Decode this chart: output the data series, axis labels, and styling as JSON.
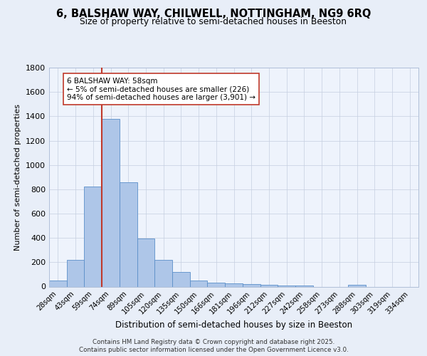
{
  "title_line1": "6, BALSHAW WAY, CHILWELL, NOTTINGHAM, NG9 6RQ",
  "title_line2": "Size of property relative to semi-detached houses in Beeston",
  "xlabel": "Distribution of semi-detached houses by size in Beeston",
  "ylabel": "Number of semi-detached properties",
  "categories": [
    "28sqm",
    "43sqm",
    "59sqm",
    "74sqm",
    "89sqm",
    "105sqm",
    "120sqm",
    "135sqm",
    "150sqm",
    "166sqm",
    "181sqm",
    "196sqm",
    "212sqm",
    "227sqm",
    "242sqm",
    "258sqm",
    "273sqm",
    "288sqm",
    "303sqm",
    "319sqm",
    "334sqm"
  ],
  "values": [
    50,
    220,
    820,
    1380,
    860,
    395,
    220,
    120,
    50,
    35,
    25,
    18,
    15,
    10,
    10,
    0,
    0,
    12,
    0,
    0,
    0
  ],
  "bar_color": "#aec6e8",
  "bar_edge_color": "#5b8fc9",
  "vline_color": "#c0392b",
  "annotation_text": "6 BALSHAW WAY: 58sqm\n← 5% of semi-detached houses are smaller (226)\n94% of semi-detached houses are larger (3,901) →",
  "annotation_box_color": "#ffffff",
  "annotation_box_edge": "#c0392b",
  "ylim": [
    0,
    1800
  ],
  "yticks": [
    0,
    200,
    400,
    600,
    800,
    1000,
    1200,
    1400,
    1600,
    1800
  ],
  "footer_line1": "Contains HM Land Registry data © Crown copyright and database right 2025.",
  "footer_line2": "Contains public sector information licensed under the Open Government Licence v3.0.",
  "bg_color": "#e8eef8",
  "plot_bg_color": "#eef3fc"
}
